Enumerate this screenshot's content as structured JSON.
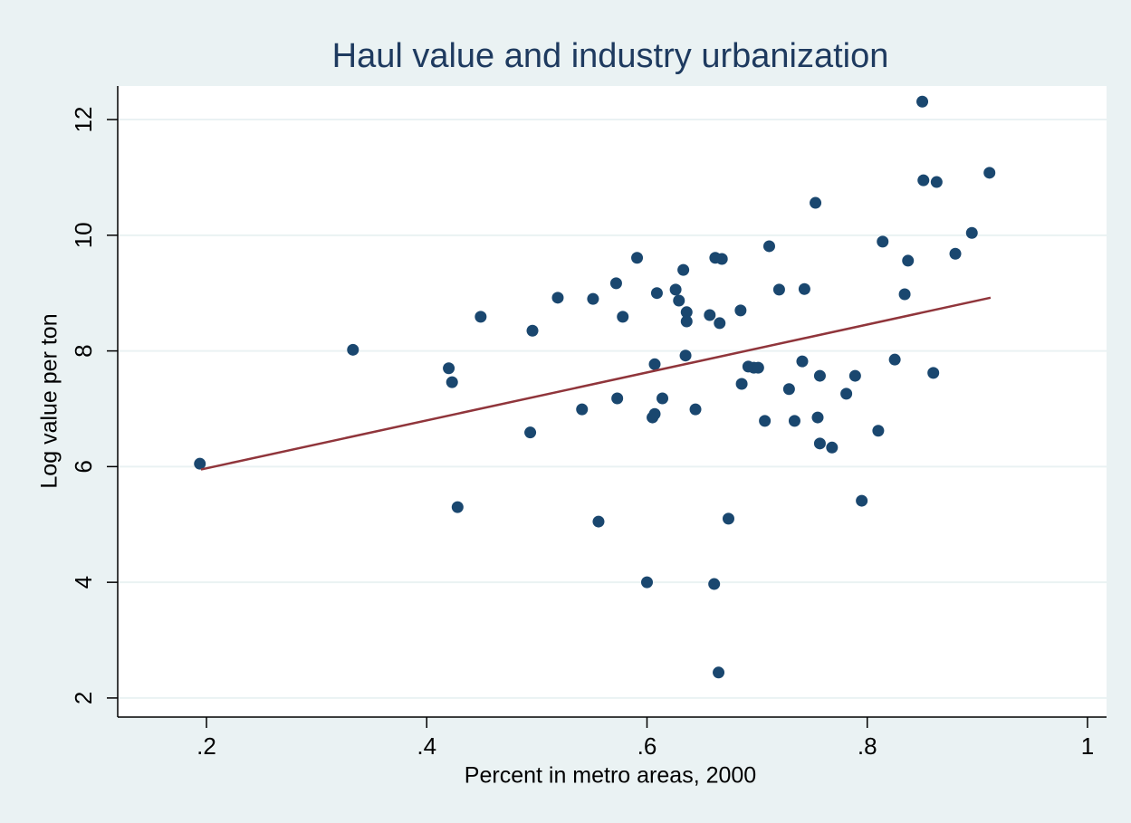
{
  "chart_data": {
    "type": "scatter",
    "title": "Haul value and industry urbanization",
    "x_label": "Percent in metro areas, 2000",
    "y_label": "Log value per ton",
    "xlim": [
      0.1194,
      1.0173
    ],
    "ylim": [
      1.67,
      12.58
    ],
    "xticks": [
      {
        "value": 0.2,
        "label": ".2"
      },
      {
        "value": 0.4,
        "label": ".4"
      },
      {
        "value": 0.6,
        "label": ".6"
      },
      {
        "value": 0.8,
        "label": ".8"
      },
      1
    ],
    "yticks": [
      2,
      4,
      6,
      8,
      10,
      12
    ],
    "grid": true,
    "series": [
      {
        "kind": "marker",
        "color": "#1a476f",
        "x": [
          0.194,
          0.333,
          0.42,
          0.423,
          0.428,
          0.449,
          0.494,
          0.496,
          0.519,
          0.541,
          0.551,
          0.556,
          0.572,
          0.573,
          0.578,
          0.591,
          0.6,
          0.605,
          0.607,
          0.607,
          0.609,
          0.614,
          0.626,
          0.629,
          0.633,
          0.635,
          0.636,
          0.636,
          0.644,
          0.657,
          0.662,
          0.668,
          0.666,
          0.661,
          0.665,
          0.674,
          0.685,
          0.686,
          0.692,
          0.697,
          0.701,
          0.707,
          0.711,
          0.72,
          0.729,
          0.734,
          0.741,
          0.743,
          0.753,
          0.755,
          0.757,
          0.757,
          0.768,
          0.781,
          0.789,
          0.795,
          0.81,
          0.814,
          0.825,
          0.834,
          0.837,
          0.85,
          0.851,
          0.86,
          0.863,
          0.88,
          0.895,
          0.911
        ],
        "values": [
          6.05,
          8.02,
          7.7,
          7.46,
          5.3,
          8.59,
          6.59,
          8.35,
          8.92,
          6.99,
          8.9,
          5.05,
          9.17,
          7.18,
          8.59,
          9.61,
          4.0,
          6.85,
          6.91,
          7.77,
          9.0,
          7.18,
          9.06,
          8.87,
          9.4,
          7.92,
          8.67,
          8.51,
          6.99,
          8.62,
          9.61,
          9.59,
          8.48,
          3.97,
          2.44,
          5.1,
          8.7,
          7.43,
          7.73,
          7.71,
          7.71,
          6.79,
          9.81,
          9.06,
          7.34,
          6.79,
          7.82,
          9.07,
          10.56,
          6.85,
          7.57,
          6.4,
          6.33,
          7.26,
          7.57,
          5.41,
          6.62,
          9.89,
          7.85,
          8.98,
          9.56,
          12.31,
          10.95,
          7.62,
          10.92,
          9.68,
          10.04,
          11.08
        ]
      },
      {
        "kind": "line",
        "color": "#90353b",
        "x": [
          0.195,
          0.912
        ],
        "values": [
          5.95,
          8.92
        ]
      }
    ]
  }
}
